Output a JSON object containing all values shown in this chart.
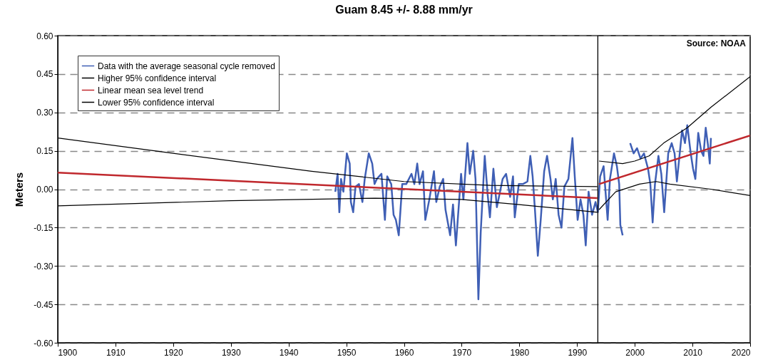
{
  "chart_data": {
    "type": "line",
    "title": "Guam        8.45 +/- 8.88 mm/yr",
    "ylabel": "Meters",
    "annotations": [
      "Source: NOAA"
    ],
    "xlim": [
      1900,
      2020
    ],
    "xticks": [
      1900,
      1910,
      1920,
      1930,
      1940,
      1950,
      1960,
      1970,
      1980,
      1990,
      2000,
      2010,
      2020
    ],
    "ylim": [
      -0.6,
      0.6
    ],
    "yticks": [
      {
        "value": -0.6,
        "label": "-0.60"
      },
      {
        "value": -0.45,
        "label": "-0.45"
      },
      {
        "value": -0.3,
        "label": "-0.30"
      },
      {
        "value": -0.15,
        "label": "-0.15"
      },
      {
        "value": 0,
        "label": "0.00"
      },
      {
        "value": 0.15,
        "label": "0.15"
      },
      {
        "value": 0.3,
        "label": "0.30"
      },
      {
        "value": 0.45,
        "label": "0.45"
      },
      {
        "value": 0.6,
        "label": "0.60"
      }
    ],
    "grid": "y",
    "legend": "top left",
    "line_style": "solid",
    "marker": "none",
    "ref_lines": [
      {
        "axis": "x",
        "value": 1993.6,
        "color": "#000000"
      }
    ],
    "series": [
      {
        "name": "Data with the average seasonal cycle removed",
        "color": "#3f5fb5",
        "x": [
          1948.1,
          1948.5,
          1948.8,
          1949.1,
          1949.5,
          1950.1,
          1950.6,
          1950.8,
          1951.2,
          1951.6,
          1952.2,
          1952.8,
          1953.2,
          1953.9,
          1954.5,
          1954.9,
          1955.3,
          1956.1,
          1956.7,
          1957.1,
          1957.8,
          1958.2,
          1958.6,
          1959.1,
          1959.7,
          1960.4,
          1961.3,
          1961.8,
          1962.3,
          1962.7,
          1963.3,
          1963.7,
          1964.4,
          1965.2,
          1965.6,
          1966.2,
          1966.8,
          1967.2,
          1968.0,
          1968.5,
          1969.0,
          1969.9,
          1970.3,
          1971.0,
          1971.4,
          1972.0,
          1972.4,
          1972.9,
          1973.3,
          1974.0,
          1974.5,
          1974.9,
          1975.5,
          1976.1,
          1977.1,
          1977.7,
          1978.4,
          1978.9,
          1979.2,
          1979.9,
          1980.6,
          1981.4,
          1981.9,
          1982.3,
          1982.7,
          1983.2,
          1983.7,
          1984.3,
          1984.8,
          1985.4,
          1985.8,
          1986.3,
          1986.8,
          1987.3,
          1987.8,
          1988.5,
          1989.2,
          1989.6,
          1990.1,
          1990.6,
          1991.1,
          1991.5,
          1992.0,
          1992.6,
          1993.2,
          1993.6,
          1994.0,
          1994.6,
          1995.3,
          1995.7,
          1996.4,
          1996.9,
          1997.3,
          1997.5,
          1997.9,
          1998.5,
          1999.2,
          1999.8,
          2000.4,
          2001.0,
          2001.6,
          2002.3,
          2002.7,
          2003.1,
          2003.5,
          2004.1,
          2004.6,
          2005.1,
          2005.8,
          2006.4,
          2006.9,
          2007.3,
          2008.2,
          2008.7,
          2009.1,
          2009.7,
          2010.1,
          2010.5,
          2011.0,
          2011.5,
          2011.9,
          2012.3,
          2012.7,
          2013.0,
          2013.2
        ],
        "values": [
          -0.01,
          0.06,
          -0.09,
          0.04,
          -0.01,
          0.14,
          0.1,
          -0.05,
          -0.09,
          0.01,
          0.02,
          -0.05,
          0.04,
          0.14,
          0.1,
          0.02,
          0.04,
          0.06,
          -0.12,
          0.05,
          0.02,
          -0.1,
          -0.12,
          -0.18,
          0.02,
          0.02,
          0.06,
          0.02,
          0.1,
          0.02,
          0.07,
          -0.12,
          -0.04,
          0.07,
          -0.05,
          0.01,
          0.04,
          -0.08,
          -0.18,
          -0.06,
          -0.22,
          0.06,
          -0.04,
          0.18,
          0.06,
          0.15,
          0.04,
          -0.43,
          -0.17,
          0.13,
          -0.02,
          -0.11,
          0.08,
          -0.07,
          0.04,
          0.06,
          -0.03,
          0.05,
          -0.11,
          0.02,
          0.02,
          0.03,
          0.13,
          0.05,
          -0.08,
          -0.26,
          -0.12,
          0.07,
          0.13,
          0.04,
          -0.04,
          0.04,
          -0.1,
          -0.15,
          0.01,
          0.04,
          0.2,
          0.05,
          -0.12,
          -0.04,
          -0.1,
          -0.22,
          -0.01,
          -0.1,
          -0.05,
          -0.09,
          0.05,
          0.09,
          -0.12,
          0.04,
          0.14,
          0.09,
          0.02,
          -0.14,
          -0.18,
          null,
          0.18,
          0.14,
          0.16,
          0.12,
          0.14,
          0.08,
          0.02,
          -0.13,
          0.02,
          0.13,
          0.06,
          -0.09,
          0.14,
          0.18,
          0.14,
          0.03,
          0.23,
          0.18,
          0.25,
          0.14,
          0.08,
          0.04,
          0.22,
          0.15,
          0.13,
          0.24,
          0.17,
          0.1,
          0.2
        ]
      },
      {
        "name": "Higher 95% confidence interval",
        "color": "#000000",
        "x": [
          1900,
          1920,
          1944,
          1960,
          1975,
          1993.5,
          1993.6,
          1993.8,
          1997.9,
          2000,
          2002.5,
          2005,
          2009.1,
          2013.2,
          2020
        ],
        "values": [
          0.2,
          0.14,
          0.07,
          0.03,
          0.015,
          0.01,
          null,
          0.11,
          0.1,
          0.11,
          0.13,
          0.18,
          0.24,
          0.32,
          0.44
        ]
      },
      {
        "name": "Linear mean sea level trend",
        "color": "#c0282d",
        "x": [
          1900,
          1993.5,
          1993.6,
          1993.8,
          2020
        ],
        "values": [
          0.065,
          -0.035,
          null,
          0.02,
          0.21
        ]
      },
      {
        "name": "Lower 95% confidence interval",
        "color": "#000000",
        "x": [
          1900,
          1930,
          1955,
          1970,
          1980,
          1993.5,
          1993.6,
          1993.8,
          1996.7,
          2000.8,
          2003.7,
          2006.1,
          2013.2,
          2020
        ],
        "values": [
          -0.065,
          -0.045,
          -0.035,
          -0.04,
          -0.06,
          -0.09,
          null,
          -0.08,
          -0.01,
          0.02,
          0.03,
          0.02,
          0,
          -0.025
        ]
      }
    ]
  }
}
